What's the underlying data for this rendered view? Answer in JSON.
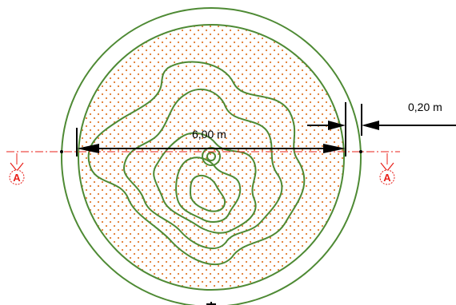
{
  "diagram": {
    "diameter_label": "6,00 m",
    "wall_label": "0,20 m",
    "section_left": "A",
    "section_right": "A"
  },
  "colors": {
    "circle": "#4e8a34",
    "contour": "#4e8a34",
    "fill_dots": "#e07a2f",
    "section_line": "#e8201a",
    "dimension": "#000000"
  }
}
